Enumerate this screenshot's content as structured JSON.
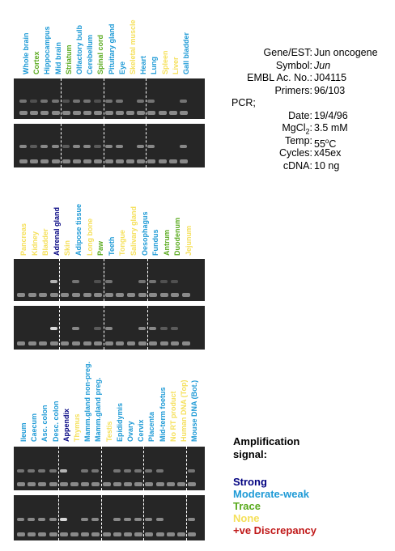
{
  "info": {
    "gene_label": "Gene/EST:",
    "gene_value": "Jun oncogene",
    "symbol_label": "Symbol:",
    "symbol_value": "Jun",
    "embl_label": "EMBL Ac. No.:",
    "embl_value": "J04115",
    "primers_label": "Primers:",
    "primers_value": "96/103",
    "pcr_label": "PCR;",
    "date_label": "Date:",
    "date_value": "19/4/96",
    "mgcl_label": "MgCl2:",
    "mgcl_value": "3.5 mM",
    "temp_label": "Temp:",
    "temp_value": "55oC",
    "cycles_label": "Cycles:",
    "cycles_value": "x45ex",
    "cdna_label": "cDNA:",
    "cdna_value": "10 ng"
  },
  "legend": {
    "title": "Amplification signal:",
    "items": [
      {
        "label": "Strong",
        "color": "#000080"
      },
      {
        "label": "Moderate-weak",
        "color": "#1e9ad6"
      },
      {
        "label": "Trace",
        "color": "#5aaa1e"
      },
      {
        "label": "None",
        "color": "#f5e05a"
      },
      {
        "label": "+ve Discrepancy",
        "color": "#c01818"
      }
    ]
  },
  "panels": [
    {
      "lanes": [
        {
          "label": "Whole brain",
          "signal": "Moderate-weak"
        },
        {
          "label": "Cortex",
          "signal": "Trace"
        },
        {
          "label": "Hippocampus",
          "signal": "Moderate-weak"
        },
        {
          "label": "Mid brain",
          "signal": "Moderate-weak"
        },
        {
          "label": "Striatum",
          "signal": "Trace"
        },
        {
          "label": "Olfactory bulb",
          "signal": "Moderate-weak"
        },
        {
          "label": "Cerebellum",
          "signal": "Moderate-weak"
        },
        {
          "label": "Spinal cord",
          "signal": "Trace"
        },
        {
          "label": "Pituitary gland",
          "signal": "Moderate-weak"
        },
        {
          "label": "Eye",
          "signal": "Moderate-weak"
        },
        {
          "label": "Skeletal muscle",
          "signal": "None"
        },
        {
          "label": "Heart",
          "signal": "Moderate-weak"
        },
        {
          "label": "Lung",
          "signal": "Moderate-weak"
        },
        {
          "label": "Spleen",
          "signal": "None"
        },
        {
          "label": "Liver",
          "signal": "None"
        },
        {
          "label": "Gall bladder",
          "signal": "Moderate-weak"
        }
      ],
      "separators_after": [
        4,
        8,
        12
      ]
    },
    {
      "lanes": [
        {
          "label": "Pancreas",
          "signal": "None"
        },
        {
          "label": "Kidney",
          "signal": "None"
        },
        {
          "label": "Bladder",
          "signal": "None"
        },
        {
          "label": "Adrenal gland",
          "signal": "Strong"
        },
        {
          "label": "Skin",
          "signal": "None"
        },
        {
          "label": "Adipose tissue",
          "signal": "Moderate-weak"
        },
        {
          "label": "Long bone",
          "signal": "None"
        },
        {
          "label": "Paw",
          "signal": "Trace"
        },
        {
          "label": "Teeth",
          "signal": "Moderate-weak"
        },
        {
          "label": "Tongue",
          "signal": "None"
        },
        {
          "label": "Salivary gland",
          "signal": "None"
        },
        {
          "label": "Oesophagus",
          "signal": "Moderate-weak"
        },
        {
          "label": "Fundus",
          "signal": "Moderate-weak"
        },
        {
          "label": "Antrum",
          "signal": "Trace"
        },
        {
          "label": "Duodenum",
          "signal": "Trace"
        },
        {
          "label": "Jejunum",
          "signal": "None"
        }
      ],
      "separators_after": [
        4,
        8,
        12
      ]
    },
    {
      "lanes": [
        {
          "label": "Ileum",
          "signal": "Moderate-weak"
        },
        {
          "label": "Caecum",
          "signal": "Moderate-weak"
        },
        {
          "label": "Asc. colon",
          "signal": "Moderate-weak"
        },
        {
          "label": "Desc. colon",
          "signal": "Moderate-weak"
        },
        {
          "label": "Appendix",
          "signal": "Strong"
        },
        {
          "label": "Thymus",
          "signal": "None"
        },
        {
          "label": "Mamm.gland non-preg.",
          "signal": "Moderate-weak"
        },
        {
          "label": "Mamm.gland preg.",
          "signal": "Moderate-weak"
        },
        {
          "label": "Testis",
          "signal": "None"
        },
        {
          "label": "Epididymis",
          "signal": "Moderate-weak"
        },
        {
          "label": "Ovary",
          "signal": "Moderate-weak"
        },
        {
          "label": "Cervix",
          "signal": "Moderate-weak"
        },
        {
          "label": "Placenta",
          "signal": "Moderate-weak"
        },
        {
          "label": "Mid-term foetus",
          "signal": "Moderate-weak"
        },
        {
          "label": "No RT product",
          "signal": "None"
        },
        {
          "label": "Human DNA (Top)",
          "signal": "None"
        },
        {
          "label": "Mouse DNA (Bot.)",
          "signal": "Moderate-weak"
        }
      ],
      "separators_after": [
        4,
        8,
        12,
        16
      ]
    }
  ]
}
